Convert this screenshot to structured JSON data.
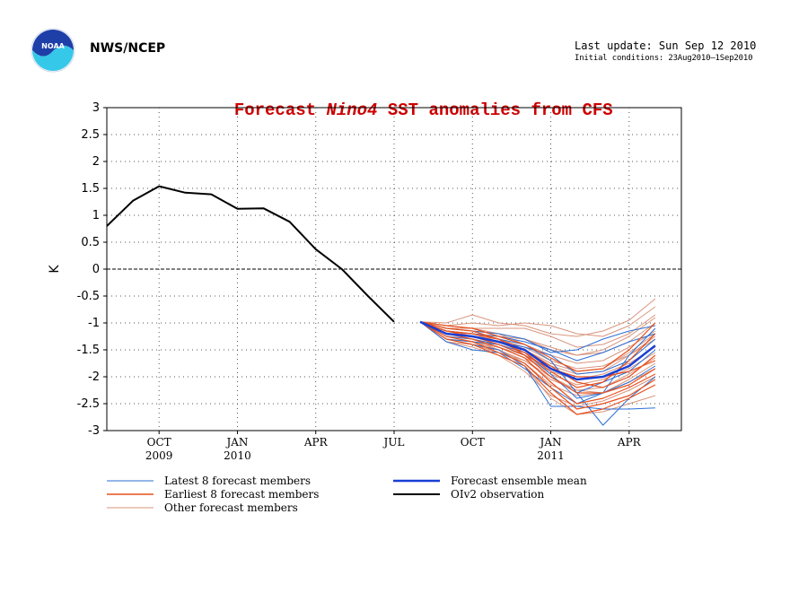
{
  "header": {
    "org_label": "NWS/NCEP",
    "logo_text": "NOAA",
    "last_update": "Last update: Sun Sep 12 2010",
    "initial_conditions": "Initial conditions: 23Aug2010–1Sep2010"
  },
  "colors": {
    "title": "#cc0000",
    "latest": "#2b6fd6",
    "earliest": "#e8501e",
    "other": "#d9957e",
    "mean": "#1a3fd4",
    "observation": "#000000",
    "grid": "#555555"
  },
  "chart_data": {
    "type": "line",
    "title_prefix": "Forecast ",
    "title_italic": "Nino4",
    "title_suffix": " SST anomalies from CFS",
    "ylabel": "K",
    "xlabel": "",
    "ylim": [
      -3,
      3
    ],
    "yticks": [
      "3",
      "2.5",
      "2",
      "1.5",
      "1",
      "0.5",
      "0",
      "-0.5",
      "-1",
      "-1.5",
      "-2",
      "-2.5",
      "-3"
    ],
    "xlim_months": [
      "2009-08",
      "2011-06"
    ],
    "xticks": [
      {
        "label": "OCT",
        "year": "2009",
        "month": "2009-10"
      },
      {
        "label": "JAN",
        "year": "2010",
        "month": "2010-01"
      },
      {
        "label": "APR",
        "year": "",
        "month": "2010-04"
      },
      {
        "label": "JUL",
        "year": "",
        "month": "2010-07"
      },
      {
        "label": "OCT",
        "year": "",
        "month": "2010-10"
      },
      {
        "label": "JAN",
        "year": "2011",
        "month": "2011-01"
      },
      {
        "label": "APR",
        "year": "",
        "month": "2011-04"
      }
    ],
    "grid": true,
    "zero_line": true,
    "observation": {
      "name": "OIv2 observation",
      "x": [
        "2009-08",
        "2009-09",
        "2009-10",
        "2009-11",
        "2009-12",
        "2010-01",
        "2010-02",
        "2010-03",
        "2010-04",
        "2010-05",
        "2010-06",
        "2010-07",
        "2010-08"
      ],
      "y": [
        0.8,
        1.27,
        1.54,
        1.42,
        1.39,
        1.12,
        1.13,
        0.88,
        0.37,
        0.0,
        -0.5,
        -0.98,
        null
      ]
    },
    "forecast_months": [
      "2010-08",
      "2010-09",
      "2010-10",
      "2010-11",
      "2010-12",
      "2011-01",
      "2011-02",
      "2011-03",
      "2011-04",
      "2011-05"
    ],
    "ensemble_mean": {
      "name": "Forecast ensemble mean",
      "values": [
        -0.98,
        -1.2,
        -1.25,
        -1.35,
        -1.5,
        -1.85,
        -2.05,
        -2.0,
        -1.8,
        -1.42
      ]
    },
    "latest_members": {
      "name": "Latest 8 forecast members",
      "series": [
        [
          -0.98,
          -1.3,
          -1.4,
          -1.5,
          -1.8,
          -2.55,
          -2.55,
          -2.6,
          -2.6,
          -2.58
        ],
        [
          -0.98,
          -1.15,
          -1.2,
          -1.3,
          -1.4,
          -1.7,
          -2.3,
          -2.9,
          -2.4,
          -2.0
        ],
        [
          -0.98,
          -1.3,
          -1.35,
          -1.4,
          -1.55,
          -1.95,
          -2.4,
          -2.3,
          -1.6,
          -1.1
        ],
        [
          -0.98,
          -1.1,
          -1.15,
          -1.2,
          -1.3,
          -1.55,
          -1.5,
          -1.3,
          -1.15,
          -1.05
        ],
        [
          -0.98,
          -1.35,
          -1.5,
          -1.55,
          -1.85,
          -2.2,
          -2.5,
          -2.3,
          -2.1,
          -1.8
        ],
        [
          -0.98,
          -1.2,
          -1.25,
          -1.35,
          -1.45,
          -1.6,
          -1.95,
          -1.9,
          -1.7,
          -1.3
        ],
        [
          -0.98,
          -1.25,
          -1.3,
          -1.4,
          -1.6,
          -2.0,
          -2.3,
          -2.1,
          -1.9,
          -1.5
        ],
        [
          -0.98,
          -1.15,
          -1.2,
          -1.25,
          -1.35,
          -1.5,
          -1.7,
          -1.55,
          -1.35,
          -1.2
        ]
      ]
    },
    "earliest_members": {
      "name": "Earliest 8 forecast members",
      "series": [
        [
          -0.98,
          -1.1,
          -1.15,
          -1.3,
          -1.6,
          -2.0,
          -2.3,
          -2.3,
          -2.15,
          -1.85
        ],
        [
          -0.98,
          -1.2,
          -1.3,
          -1.45,
          -1.65,
          -2.1,
          -2.5,
          -2.4,
          -2.2,
          -1.95
        ],
        [
          -0.98,
          -1.15,
          -1.25,
          -1.35,
          -1.55,
          -1.9,
          -2.2,
          -2.1,
          -1.7,
          -1.2
        ],
        [
          -0.98,
          -1.25,
          -1.35,
          -1.55,
          -1.75,
          -2.2,
          -2.6,
          -2.5,
          -2.35,
          -2.05
        ],
        [
          -0.98,
          -1.05,
          -1.1,
          -1.25,
          -1.4,
          -1.65,
          -1.9,
          -1.85,
          -1.5,
          -1.0
        ],
        [
          -0.98,
          -1.2,
          -1.25,
          -1.4,
          -1.6,
          -1.85,
          -2.0,
          -2.0,
          -1.9,
          -1.7
        ],
        [
          -0.98,
          -1.15,
          -1.2,
          -1.3,
          -1.5,
          -1.8,
          -2.1,
          -2.2,
          -2.0,
          -1.6
        ],
        [
          -0.98,
          -1.3,
          -1.4,
          -1.6,
          -1.8,
          -2.3,
          -2.7,
          -2.6,
          -2.4,
          -2.15
        ]
      ]
    },
    "other_members": {
      "name": "Other forecast members",
      "series": [
        [
          -0.98,
          -1.0,
          -0.85,
          -1.0,
          -1.05,
          -1.2,
          -1.25,
          -1.15,
          -0.95,
          -0.55
        ],
        [
          -0.98,
          -1.05,
          -1.0,
          -1.05,
          -1.0,
          -1.05,
          -1.2,
          -1.25,
          -1.05,
          -0.7
        ],
        [
          -0.98,
          -1.1,
          -1.1,
          -1.1,
          -1.1,
          -1.25,
          -1.45,
          -1.4,
          -1.2,
          -0.85
        ],
        [
          -0.98,
          -1.15,
          -1.2,
          -1.25,
          -1.3,
          -1.45,
          -1.6,
          -1.55,
          -1.35,
          -1.0
        ],
        [
          -0.98,
          -1.2,
          -1.25,
          -1.3,
          -1.45,
          -1.7,
          -1.85,
          -1.8,
          -1.6,
          -1.3
        ],
        [
          -0.98,
          -1.25,
          -1.3,
          -1.45,
          -1.6,
          -1.95,
          -2.15,
          -2.05,
          -1.85,
          -1.55
        ],
        [
          -0.98,
          -1.3,
          -1.35,
          -1.5,
          -1.75,
          -2.15,
          -2.35,
          -2.3,
          -2.05,
          -1.75
        ],
        [
          -0.98,
          -1.35,
          -1.45,
          -1.6,
          -1.9,
          -2.35,
          -2.55,
          -2.45,
          -2.25,
          -2.0
        ],
        [
          -0.98,
          -1.2,
          -1.3,
          -1.5,
          -1.8,
          -2.4,
          -2.7,
          -2.65,
          -2.5,
          -2.35
        ],
        [
          -0.98,
          -1.1,
          -1.15,
          -1.2,
          -1.4,
          -1.6,
          -1.75,
          -1.7,
          -1.45,
          -1.15
        ],
        [
          -0.98,
          -1.25,
          -1.35,
          -1.45,
          -1.65,
          -1.9,
          -2.05,
          -1.95,
          -1.75,
          -1.45
        ],
        [
          -0.98,
          -1.15,
          -1.25,
          -1.35,
          -1.55,
          -1.8,
          -1.95,
          -1.9,
          -1.6,
          -1.25
        ],
        [
          -0.98,
          -1.3,
          -1.4,
          -1.55,
          -1.7,
          -2.05,
          -2.25,
          -2.2,
          -1.95,
          -1.65
        ],
        [
          -0.98,
          -1.05,
          -1.1,
          -1.2,
          -1.3,
          -1.5,
          -1.6,
          -1.5,
          -1.25,
          -0.9
        ],
        [
          -0.98,
          -1.2,
          -1.2,
          -1.35,
          -1.5,
          -1.75,
          -1.9,
          -1.85,
          -1.55,
          -1.2
        ],
        [
          -0.98,
          -1.35,
          -1.4,
          -1.5,
          -1.7,
          -2.0,
          -2.25,
          -2.3,
          -2.1,
          -1.85
        ]
      ]
    },
    "legend": [
      {
        "key": "latest",
        "label": "Latest 8 forecast members"
      },
      {
        "key": "earliest",
        "label": "Earliest 8 forecast members"
      },
      {
        "key": "other",
        "label": "Other forecast members"
      },
      {
        "key": "mean",
        "label": "Forecast ensemble mean"
      },
      {
        "key": "observation",
        "label": "OIv2 observation"
      }
    ]
  }
}
